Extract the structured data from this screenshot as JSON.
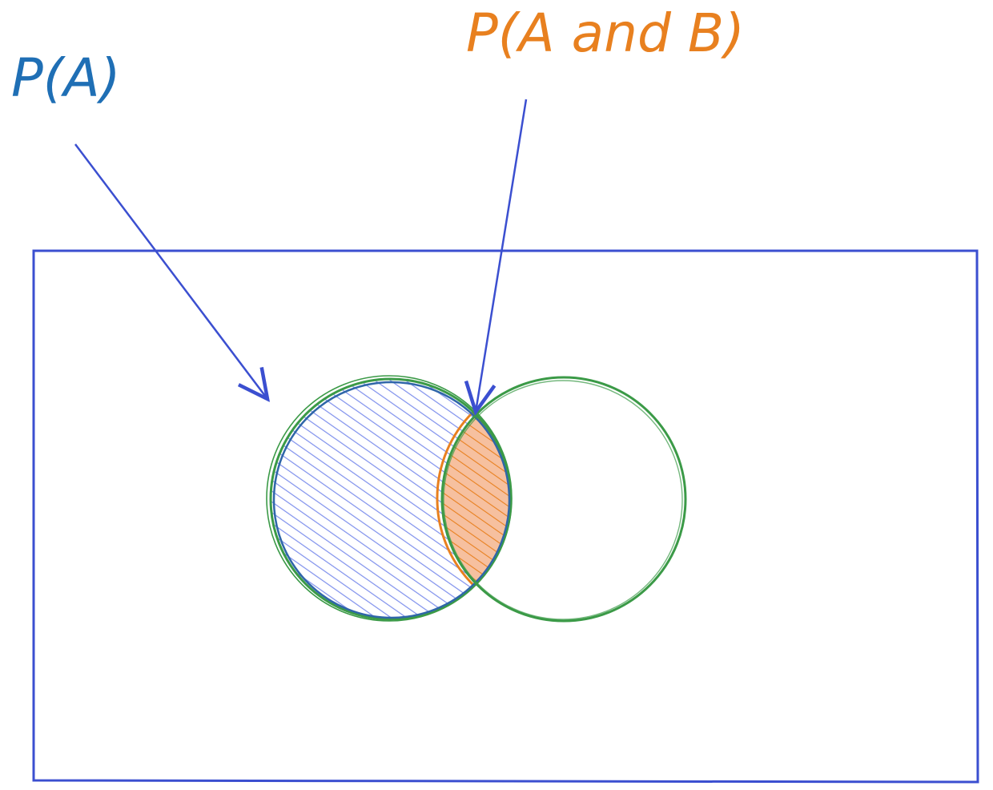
{
  "labels": {
    "pa": "P(A)",
    "pab": "P(A and B)"
  },
  "colors": {
    "blue_ink": "#1f6fb5",
    "orange_ink": "#e8801f",
    "frame": "#3b4fd0",
    "circle": "#3b9a47",
    "hatch_a": "#7f90ec",
    "hatch_ab": "#e8801f",
    "fill_ab": "#f6c09f"
  }
}
